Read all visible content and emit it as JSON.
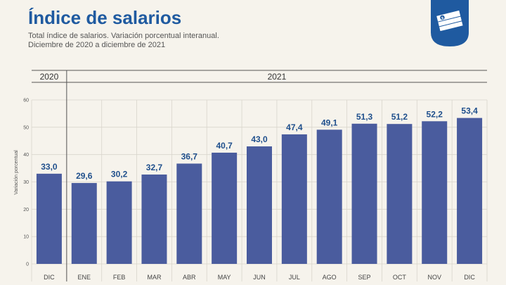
{
  "header": {
    "title": "Índice de salarios",
    "subtitle_1": "Total índice de salarios. Variación porcentual interanual.",
    "subtitle_2": "Diciembre de 2020 a diciembre de 2021"
  },
  "logo": {
    "icon": "money-stack-icon",
    "bg_color": "#1f5aa0"
  },
  "colors": {
    "bar": "#4a5c9e",
    "title": "#1f5aa0",
    "label": "#1f4f8c",
    "background": "#f6f3ec"
  },
  "chart_data": {
    "type": "bar",
    "year_groups": [
      {
        "label": "2020",
        "categories": [
          "DIC"
        ]
      },
      {
        "label": "2021",
        "categories": [
          "ENE",
          "FEB",
          "MAR",
          "ABR",
          "MAY",
          "JUN",
          "JUL",
          "AGO",
          "SEP",
          "OCT",
          "NOV",
          "DIC"
        ]
      }
    ],
    "categories": [
      "DIC",
      "ENE",
      "FEB",
      "MAR",
      "ABR",
      "MAY",
      "JUN",
      "JUL",
      "AGO",
      "SEP",
      "OCT",
      "NOV",
      "DIC"
    ],
    "values": [
      33.0,
      29.6,
      30.2,
      32.7,
      36.7,
      40.7,
      43.0,
      47.4,
      49.1,
      51.3,
      51.2,
      52.2,
      53.4
    ],
    "data_labels": [
      "33,0",
      "29,6",
      "30,2",
      "32,7",
      "36,7",
      "40,7",
      "43,0",
      "47,4",
      "49,1",
      "51,3",
      "51,2",
      "52,2",
      "53,4"
    ],
    "ylabel": "Variación porcentual",
    "ylim": [
      0,
      60
    ],
    "yticks": [
      0,
      10,
      20,
      30,
      40,
      50,
      60
    ],
    "grid": true
  }
}
